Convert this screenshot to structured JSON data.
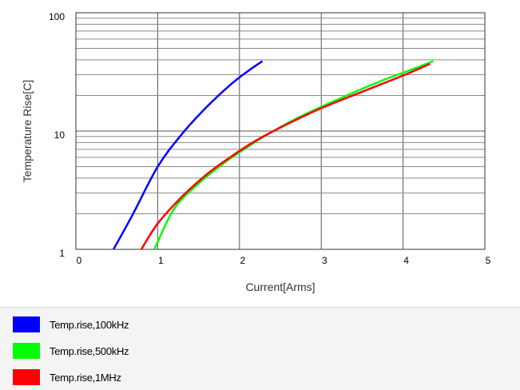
{
  "chart_data": {
    "type": "line",
    "title": "",
    "xlabel": "Current[Arms]",
    "ylabel": "Temperature Rise[C]",
    "xlim": [
      0,
      5
    ],
    "ylim": [
      1,
      100
    ],
    "yscale": "log",
    "grid": true,
    "legend_position": "bottom",
    "x_ticks": [
      "0",
      "1",
      "2",
      "3",
      "4",
      "5"
    ],
    "x_tick_values": [
      0,
      1,
      2,
      3,
      4,
      5
    ],
    "y_ticks": [
      "1",
      "10",
      "100"
    ],
    "y_tick_values": [
      1,
      10,
      100
    ],
    "series": [
      {
        "name": "Temp.rise,100kHz",
        "color": "#0000ff",
        "x": [
          0.46,
          0.7,
          1.0,
          1.3,
          1.6,
          1.9,
          2.1,
          2.28
        ],
        "y": [
          1.0,
          2.0,
          5.0,
          9.5,
          16.0,
          25.0,
          32.0,
          39.0
        ]
      },
      {
        "name": "Temp.rise,500kHz",
        "color": "#00ff00",
        "x": [
          0.96,
          1.2,
          1.5,
          1.8,
          2.0,
          2.3,
          2.7,
          3.2,
          3.7,
          4.1,
          4.37
        ],
        "y": [
          1.0,
          2.2,
          3.6,
          5.3,
          6.6,
          9.0,
          12.8,
          18.5,
          26.0,
          33.0,
          39.0
        ]
      },
      {
        "name": "Temp.rise,1MHz",
        "color": "#ff0000",
        "x": [
          0.8,
          1.0,
          1.3,
          1.6,
          1.9,
          2.2,
          2.6,
          3.0,
          3.5,
          4.0,
          4.33
        ],
        "y": [
          1.0,
          1.65,
          2.8,
          4.3,
          6.1,
          8.3,
          11.6,
          15.6,
          21.5,
          29.5,
          37.0
        ]
      }
    ]
  },
  "legend": [
    {
      "label": "Temp.rise,100kHz",
      "color": "#0000ff"
    },
    {
      "label": "Temp.rise,500kHz",
      "color": "#00ff00"
    },
    {
      "label": "Temp.rise,1MHz",
      "color": "#ff0000"
    }
  ]
}
